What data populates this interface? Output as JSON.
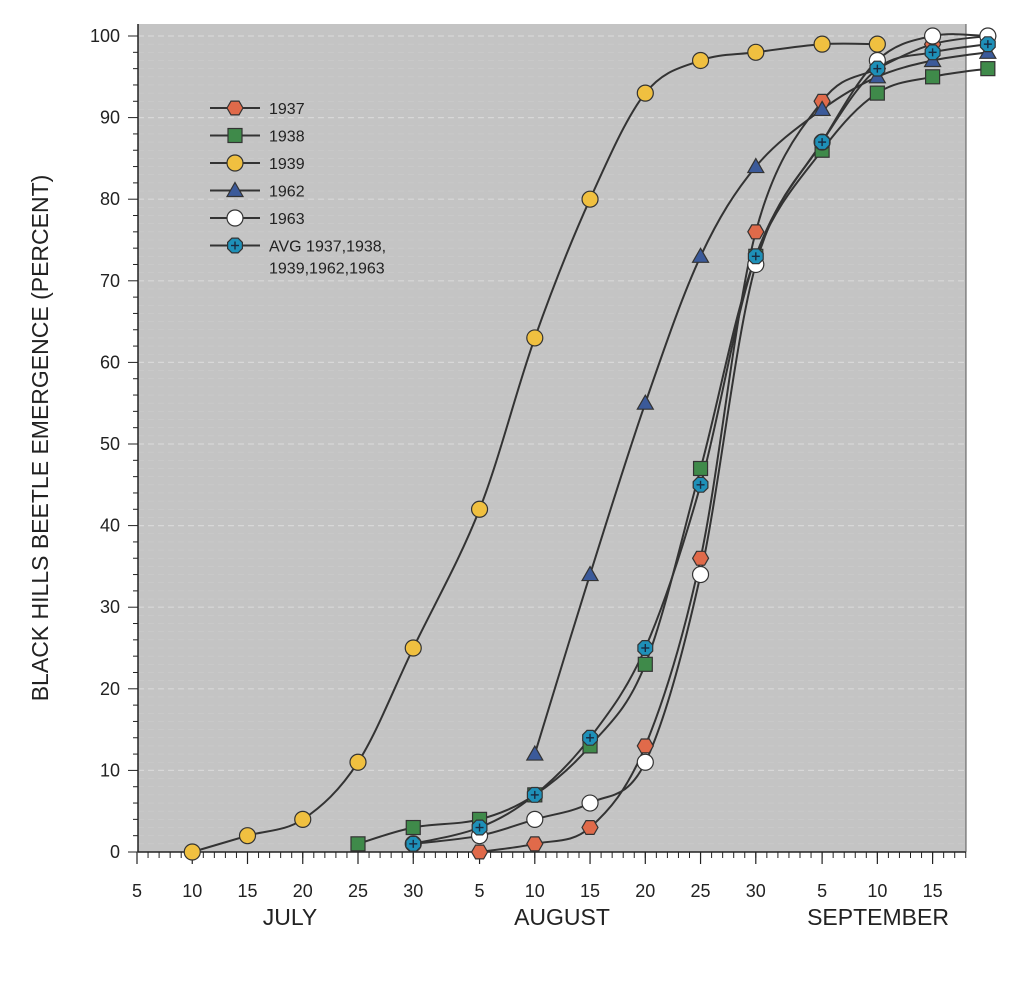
{
  "chart_data": {
    "type": "line",
    "ylabel": "BLACK HILLS BEETLE EMERGENCE (PERCENT)",
    "ylim": [
      0,
      100
    ],
    "yticks": [
      0,
      10,
      20,
      30,
      40,
      50,
      60,
      70,
      80,
      90,
      100
    ],
    "x_tick_labels": [
      "5",
      "10",
      "15",
      "20",
      "25",
      "30",
      "5",
      "10",
      "15",
      "20",
      "25",
      "30",
      "5",
      "10",
      "15"
    ],
    "months": [
      "JULY",
      "AUGUST",
      "SEPTEMBER"
    ],
    "grid": true,
    "legend_position": "top-left",
    "background": "#c4c4c4",
    "series": [
      {
        "name": "1937",
        "marker": "hexagon",
        "color": "#e06a4a",
        "points": [
          [
            "Aug 5",
            0
          ],
          [
            "Aug 10",
            1
          ],
          [
            "Aug 15",
            3
          ],
          [
            "Aug 20",
            13
          ],
          [
            "Aug 25",
            36
          ],
          [
            "Aug 30",
            76
          ],
          [
            "Sep 5",
            92
          ],
          [
            "Sep 10",
            96
          ],
          [
            "Sep 15",
            99
          ],
          [
            "Sep 20",
            100
          ]
        ]
      },
      {
        "name": "1938",
        "marker": "square",
        "color": "#3f8a4a",
        "points": [
          [
            "Jul 25",
            1
          ],
          [
            "Jul 30",
            3
          ],
          [
            "Aug 5",
            4
          ],
          [
            "Aug 10",
            7
          ],
          [
            "Aug 15",
            13
          ],
          [
            "Aug 20",
            23
          ],
          [
            "Aug 25",
            47
          ],
          [
            "Aug 30",
            73
          ],
          [
            "Sep 5",
            86
          ],
          [
            "Sep 10",
            93
          ],
          [
            "Sep 15",
            95
          ],
          [
            "Sep 20",
            96
          ]
        ]
      },
      {
        "name": "1939",
        "marker": "circle",
        "color": "#f0c040",
        "points": [
          [
            "Jul 10",
            0
          ],
          [
            "Jul 15",
            2
          ],
          [
            "Jul 20",
            4
          ],
          [
            "Jul 25",
            11
          ],
          [
            "Jul 30",
            25
          ],
          [
            "Aug 5",
            42
          ],
          [
            "Aug 10",
            63
          ],
          [
            "Aug 15",
            80
          ],
          [
            "Aug 20",
            93
          ],
          [
            "Aug 25",
            97
          ],
          [
            "Aug 30",
            98
          ],
          [
            "Sep 5",
            99
          ],
          [
            "Sep 10",
            99
          ]
        ]
      },
      {
        "name": "1962",
        "marker": "triangle",
        "color": "#3b5a9a",
        "points": [
          [
            "Aug 10",
            12
          ],
          [
            "Aug 15",
            34
          ],
          [
            "Aug 20",
            55
          ],
          [
            "Aug 25",
            73
          ],
          [
            "Aug 30",
            84
          ],
          [
            "Sep 5",
            91
          ],
          [
            "Sep 10",
            95
          ],
          [
            "Sep 15",
            97
          ],
          [
            "Sep 20",
            98
          ]
        ]
      },
      {
        "name": "1963",
        "marker": "circle",
        "color": "#ffffff",
        "points": [
          [
            "Jul 30",
            1
          ],
          [
            "Aug 5",
            2
          ],
          [
            "Aug 10",
            4
          ],
          [
            "Aug 15",
            6
          ],
          [
            "Aug 20",
            11
          ],
          [
            "Aug 25",
            34
          ],
          [
            "Aug 30",
            72
          ],
          [
            "Sep 5",
            87
          ],
          [
            "Sep 10",
            97
          ],
          [
            "Sep 15",
            100
          ],
          [
            "Sep 20",
            100
          ]
        ]
      },
      {
        "name": "AVG 1937,1938, 1939,1962,1963",
        "marker": "octagon-star",
        "color": "#1e90b8",
        "points": [
          [
            "Jul 30",
            1
          ],
          [
            "Aug 5",
            3
          ],
          [
            "Aug 10",
            7
          ],
          [
            "Aug 15",
            14
          ],
          [
            "Aug 20",
            25
          ],
          [
            "Aug 25",
            45
          ],
          [
            "Aug 30",
            73
          ],
          [
            "Sep 5",
            87
          ],
          [
            "Sep 10",
            96
          ],
          [
            "Sep 15",
            98
          ],
          [
            "Sep 20",
            99
          ]
        ]
      }
    ]
  }
}
